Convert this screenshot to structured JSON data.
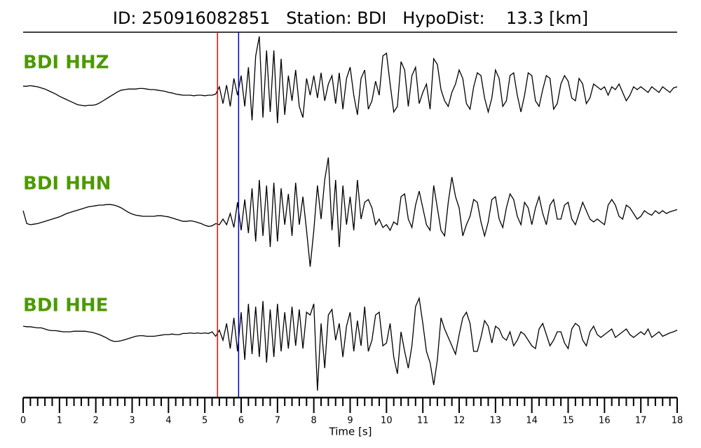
{
  "chart_data": {
    "type": "seismogram",
    "title": "ID: 250916082851   Station: BDI   HypoDist:    13.3 [km]",
    "xlabel": "Time [s]",
    "xlim": [
      0,
      18
    ],
    "xticks": [
      0,
      1,
      2,
      3,
      4,
      5,
      6,
      7,
      8,
      9,
      10,
      11,
      12,
      13,
      14,
      15,
      16,
      17,
      18
    ],
    "minor_ticks_per_major": 5,
    "sample_start": 0,
    "sample_interval": 0.1,
    "ylim": [
      -100,
      100
    ],
    "trace_color": "#000000",
    "label_color": "#4c9a00",
    "markers": [
      {
        "x": 5.35,
        "color": "#ff0000"
      },
      {
        "x": 5.93,
        "color": "#0000cc"
      }
    ],
    "series": [
      {
        "name": "BDI HHZ",
        "values": [
          6,
          6,
          7,
          6,
          5,
          3,
          1,
          -2,
          -5,
          -8,
          -12,
          -15,
          -18,
          -21,
          -24,
          -27,
          -28,
          -29,
          -28,
          -28,
          -27,
          -24,
          -20,
          -16,
          -12,
          -8,
          -4,
          -1,
          0,
          1,
          1,
          1,
          2,
          2,
          1,
          0,
          0,
          -1,
          -2,
          -3,
          -5,
          -6,
          -8,
          -9,
          -10,
          -10,
          -10,
          -11,
          -10,
          -10,
          -11,
          -10,
          -10,
          -8,
          5,
          -25,
          8,
          -30,
          20,
          -10,
          25,
          -30,
          40,
          -55,
          60,
          95,
          -50,
          70,
          -40,
          70,
          -60,
          55,
          -45,
          25,
          -20,
          35,
          -30,
          -50,
          20,
          -10,
          25,
          -15,
          30,
          -20,
          10,
          25,
          -25,
          30,
          -35,
          20,
          40,
          -10,
          -45,
          20,
          35,
          -35,
          -20,
          15,
          -10,
          60,
          65,
          10,
          -40,
          -30,
          50,
          35,
          -30,
          25,
          40,
          -25,
          -5,
          10,
          -35,
          55,
          45,
          0,
          -20,
          -30,
          -5,
          10,
          35,
          20,
          -25,
          -35,
          5,
          30,
          25,
          -15,
          -40,
          -15,
          35,
          20,
          -30,
          -20,
          25,
          30,
          -10,
          -40,
          -10,
          30,
          25,
          -20,
          -30,
          0,
          25,
          20,
          -35,
          -25,
          10,
          25,
          15,
          -15,
          -20,
          20,
          10,
          -25,
          -15,
          10,
          5,
          0,
          5,
          -10,
          5,
          0,
          10,
          -5,
          -20,
          -10,
          5,
          0,
          5,
          0,
          -5,
          5,
          0,
          -5,
          5,
          0,
          -5,
          3,
          5
        ]
      },
      {
        "name": "BDI HHN",
        "values": [
          5,
          -18,
          -20,
          -19,
          -18,
          -16,
          -14,
          -12,
          -10,
          -8,
          -6,
          -3,
          0,
          2,
          4,
          6,
          8,
          10,
          12,
          13,
          14,
          15,
          15,
          16,
          16,
          15,
          13,
          10,
          6,
          2,
          -1,
          -3,
          -4,
          -5,
          -5,
          -5,
          -5,
          -4,
          -4,
          -5,
          -6,
          -8,
          -10,
          -12,
          -14,
          -14,
          -13,
          -14,
          -16,
          -18,
          -21,
          -23,
          -22,
          -18,
          -20,
          -10,
          -20,
          0,
          -25,
          20,
          -30,
          25,
          -35,
          45,
          -50,
          60,
          -40,
          50,
          -60,
          55,
          -50,
          45,
          -20,
          35,
          -40,
          55,
          -20,
          30,
          -30,
          -95,
          -30,
          50,
          -10,
          60,
          100,
          -30,
          60,
          -60,
          50,
          -20,
          30,
          -30,
          60,
          -10,
          20,
          25,
          10,
          -20,
          -10,
          -25,
          -20,
          -30,
          -15,
          -20,
          30,
          35,
          -10,
          -25,
          15,
          40,
          10,
          -20,
          -30,
          50,
          10,
          -30,
          -40,
          20,
          65,
          30,
          10,
          -40,
          -20,
          -5,
          25,
          20,
          -15,
          -40,
          -15,
          25,
          30,
          -10,
          -25,
          10,
          35,
          25,
          -5,
          -20,
          20,
          10,
          -20,
          10,
          30,
          0,
          -20,
          15,
          25,
          -10,
          -10,
          15,
          20,
          -10,
          -20,
          0,
          20,
          5,
          -10,
          -15,
          -10,
          -15,
          -20,
          15,
          25,
          15,
          -5,
          -10,
          15,
          10,
          0,
          -10,
          -5,
          5,
          0,
          -3,
          5,
          0,
          5,
          0,
          3,
          5,
          7
        ]
      },
      {
        "name": "BDI HHE",
        "values": [
          15,
          14,
          14,
          13,
          12,
          12,
          10,
          8,
          7,
          7,
          6,
          5,
          5,
          5,
          6,
          6,
          6,
          6,
          5,
          4,
          2,
          0,
          -3,
          -6,
          -10,
          -12,
          -12,
          -11,
          -9,
          -7,
          -5,
          -3,
          -2,
          -2,
          -3,
          -3,
          -3,
          -2,
          -1,
          0,
          0,
          1,
          0,
          0,
          2,
          2,
          3,
          2,
          3,
          2,
          3,
          2,
          5,
          -3,
          8,
          -10,
          20,
          -25,
          30,
          -30,
          40,
          -45,
          55,
          -35,
          50,
          -40,
          60,
          -50,
          45,
          -40,
          55,
          -30,
          40,
          -25,
          50,
          -20,
          45,
          -25,
          40,
          35,
          55,
          -100,
          20,
          -60,
          35,
          45,
          -10,
          20,
          -40,
          15,
          40,
          -30,
          25,
          -20,
          50,
          -30,
          -10,
          35,
          40,
          -20,
          -15,
          20,
          -40,
          -70,
          5,
          -30,
          -60,
          -20,
          50,
          65,
          20,
          -30,
          -50,
          -90,
          -45,
          30,
          10,
          -5,
          -20,
          -35,
          0,
          30,
          40,
          20,
          -30,
          -30,
          -5,
          25,
          15,
          -15,
          15,
          10,
          -5,
          -10,
          5,
          -20,
          -10,
          5,
          0,
          -10,
          -20,
          -25,
          10,
          20,
          0,
          -20,
          -10,
          5,
          5,
          -15,
          -25,
          10,
          20,
          15,
          -10,
          -20,
          5,
          15,
          0,
          -5,
          0,
          5,
          10,
          -5,
          0,
          5,
          10,
          0,
          -5,
          0,
          5,
          0,
          10,
          -5,
          0,
          5,
          -3,
          0,
          3,
          5,
          8
        ]
      }
    ]
  }
}
